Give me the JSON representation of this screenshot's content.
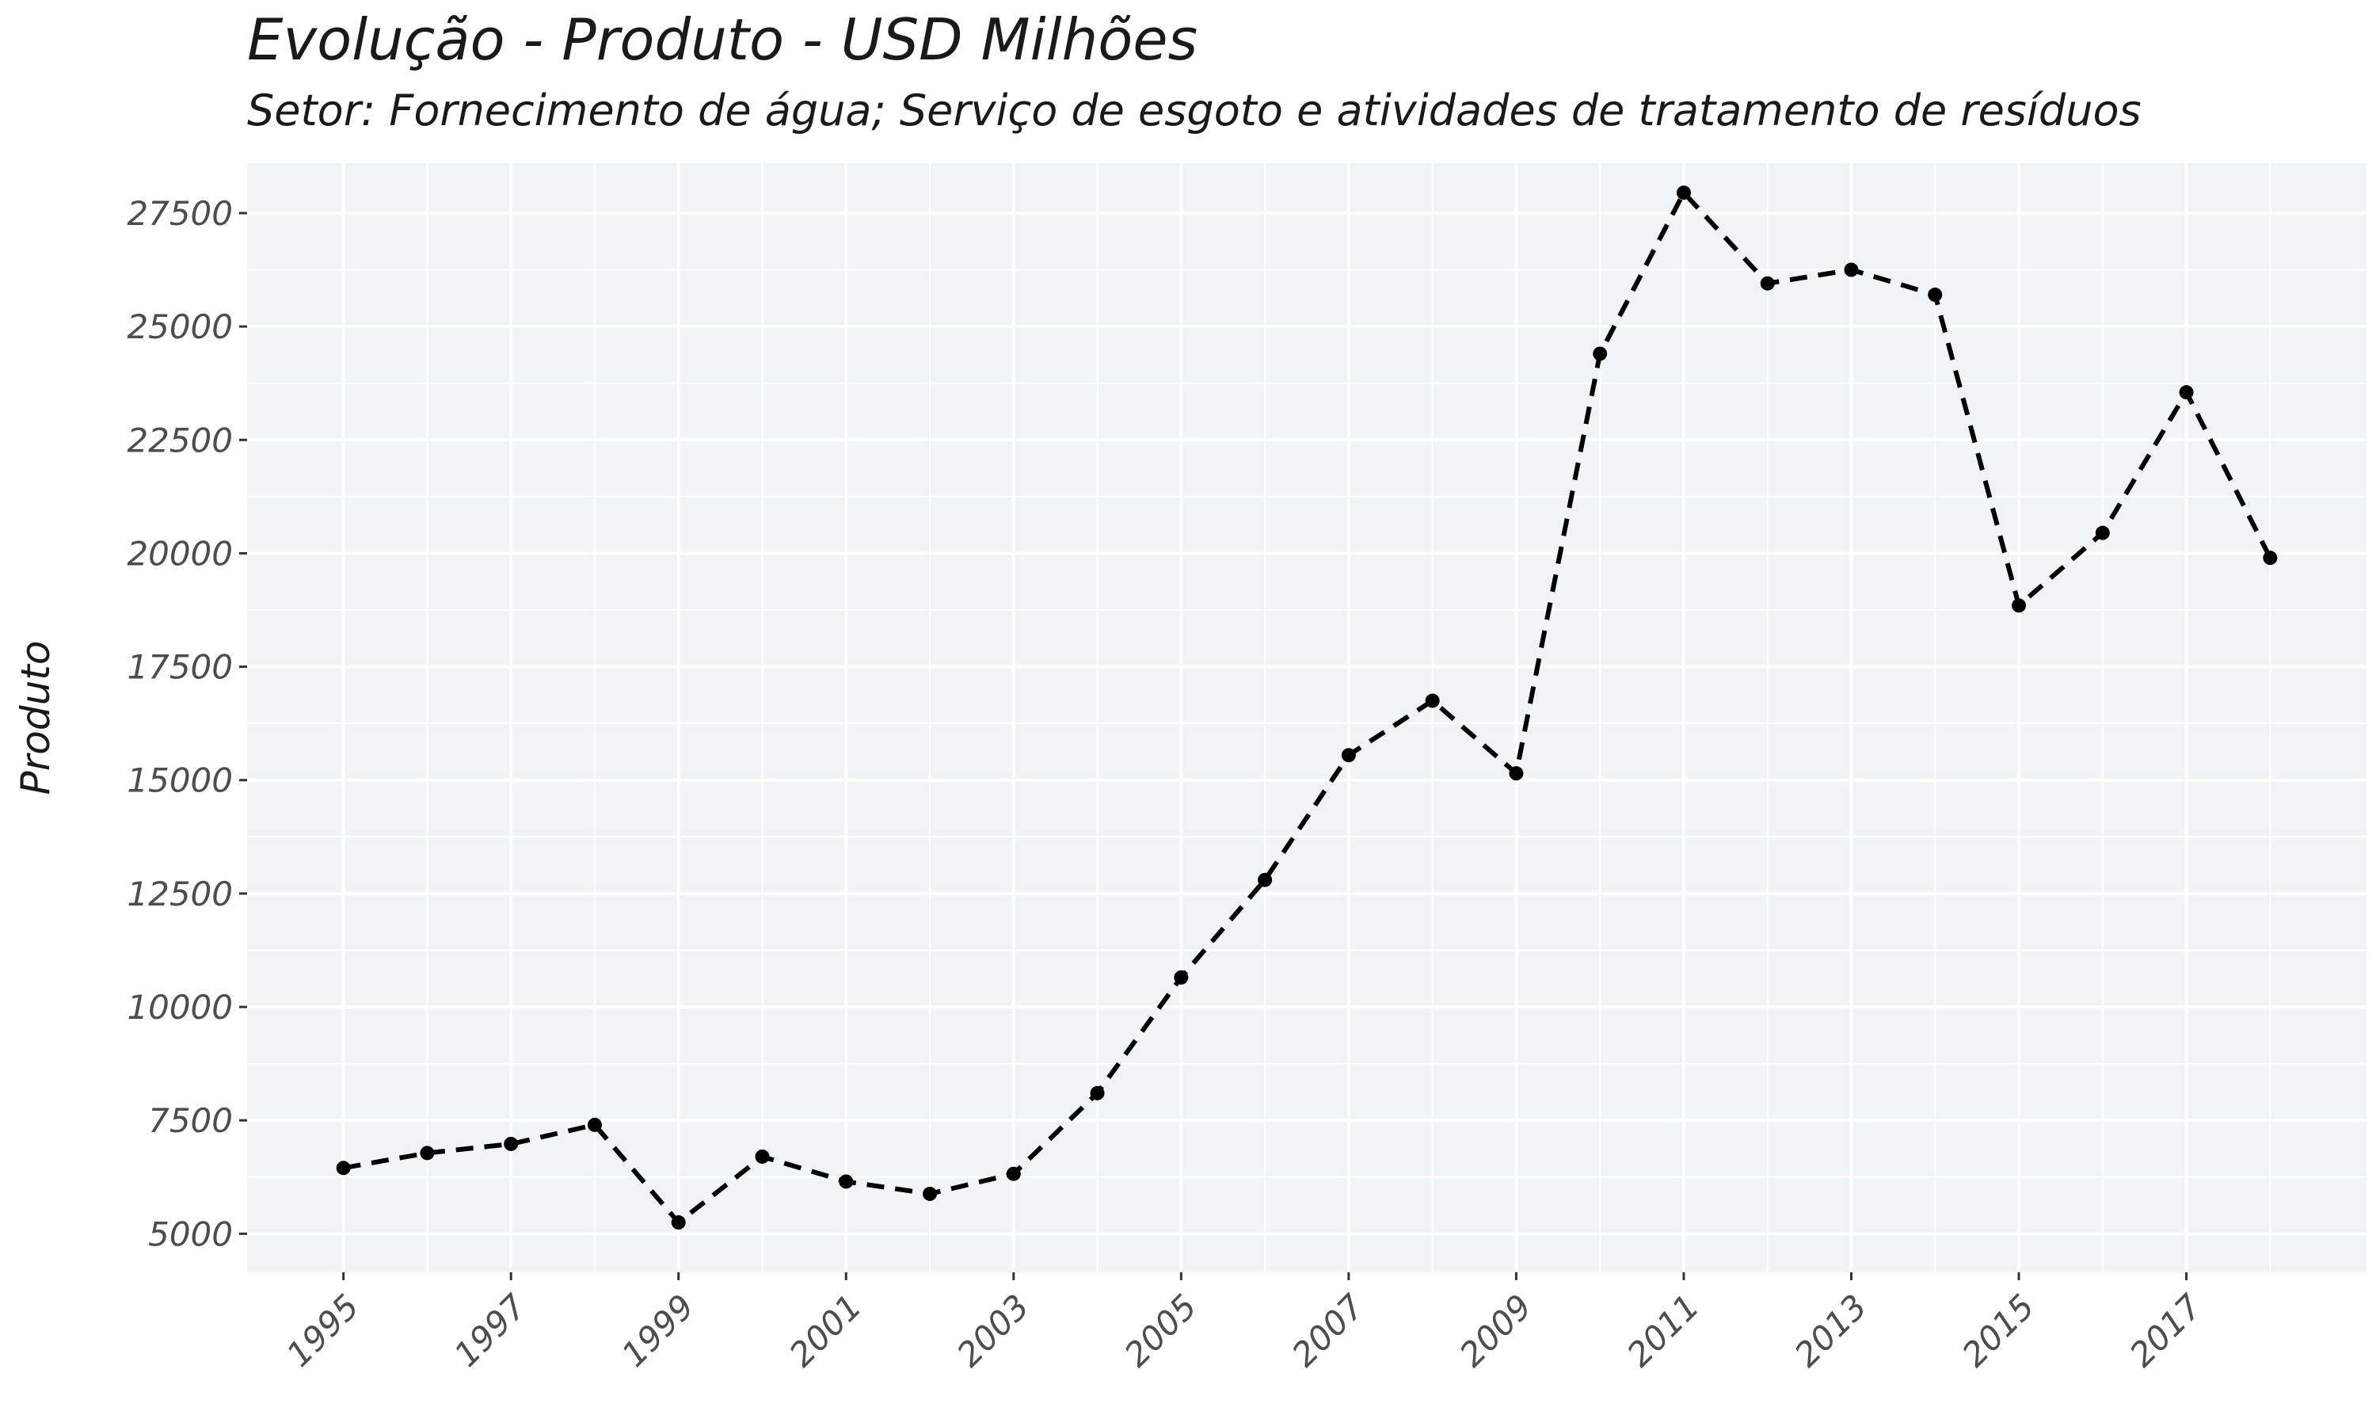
{
  "chart_data": {
    "type": "line",
    "title": "Evolução - Produto - USD Milhões",
    "subtitle": "Setor: Fornecimento de água; Serviço de esgoto e atividades de tratamento de resíduos",
    "xlabel": "",
    "ylabel": "Produto",
    "x": [
      1995,
      1996,
      1997,
      1998,
      1999,
      2000,
      2001,
      2002,
      2003,
      2004,
      2005,
      2006,
      2007,
      2008,
      2009,
      2010,
      2011,
      2012,
      2013,
      2014,
      2015,
      2016,
      2017,
      2018
    ],
    "series": [
      {
        "values": [
          6450,
          6780,
          6980,
          7400,
          5250,
          6700,
          6150,
          5880,
          6320,
          8100,
          10650,
          12800,
          15550,
          16750,
          15150,
          24400,
          27950,
          25950,
          26250,
          25700,
          18850,
          20450,
          23550,
          19900
        ]
      }
    ],
    "xticks": [
      "1995",
      "1997",
      "1999",
      "2001",
      "2003",
      "2005",
      "2007",
      "2009",
      "2011",
      "2013",
      "2015",
      "2017"
    ],
    "yticks": [
      "5000",
      "7500",
      "10000",
      "12500",
      "15000",
      "17500",
      "20000",
      "22500",
      "25000",
      "27500"
    ],
    "xlim": [
      1993.85,
      2019.15
    ],
    "ylim": [
      4150,
      28600
    ],
    "grid": true,
    "line_style": "dashed",
    "colors": {
      "line": "#000000",
      "panel": "#f2f3f5",
      "grid": "#ffffff"
    }
  }
}
